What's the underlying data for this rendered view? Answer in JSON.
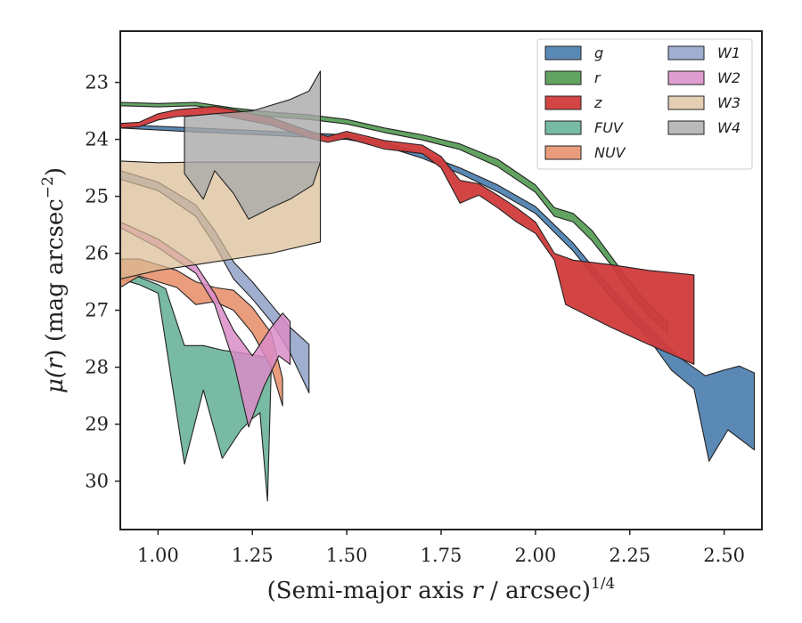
{
  "chart_data": {
    "type": "area",
    "xlabel_main": "(Semi-major axis ",
    "xlabel_var": "r",
    "xlabel_unit": " / arcsec)",
    "xlabel_exp": "1/4",
    "ylabel_main": "μ(",
    "ylabel_var": "r",
    "ylabel_unit": ") (mag arcsec",
    "ylabel_exp": "−2",
    "ylabel_close": ")",
    "xlim": [
      0.9,
      2.6
    ],
    "ylim": [
      30.85,
      22.1
    ],
    "y_inverted": true,
    "xticks": [
      1.0,
      1.25,
      1.5,
      1.75,
      2.0,
      2.25,
      2.5
    ],
    "xtick_labels": [
      "1.00",
      "1.25",
      "1.50",
      "1.75",
      "2.00",
      "2.25",
      "2.50"
    ],
    "yticks": [
      23,
      24,
      25,
      26,
      27,
      28,
      29,
      30
    ],
    "ytick_labels": [
      "23",
      "24",
      "25",
      "26",
      "27",
      "28",
      "29",
      "30"
    ],
    "grid": false,
    "legend_position": "top-right",
    "legend_columns": 2,
    "series": [
      {
        "name": "g",
        "color": "#4c7fb0",
        "opacity": 0.92,
        "upper": [
          [
            0.9,
            23.74
          ],
          [
            1.1,
            23.8
          ],
          [
            1.3,
            23.86
          ],
          [
            1.5,
            23.92
          ],
          [
            1.6,
            24.05
          ],
          [
            1.7,
            24.25
          ],
          [
            1.8,
            24.5
          ],
          [
            1.9,
            24.8
          ],
          [
            2.0,
            25.18
          ],
          [
            2.1,
            25.82
          ],
          [
            2.2,
            26.62
          ],
          [
            2.3,
            27.3
          ],
          [
            2.38,
            27.82
          ],
          [
            2.45,
            28.15
          ],
          [
            2.5,
            28.05
          ],
          [
            2.54,
            27.98
          ],
          [
            2.58,
            28.1
          ]
        ],
        "lower": [
          [
            0.9,
            23.8
          ],
          [
            1.1,
            23.87
          ],
          [
            1.3,
            23.93
          ],
          [
            1.5,
            24.0
          ],
          [
            1.6,
            24.12
          ],
          [
            1.7,
            24.33
          ],
          [
            1.8,
            24.6
          ],
          [
            1.9,
            24.92
          ],
          [
            2.0,
            25.3
          ],
          [
            2.1,
            25.96
          ],
          [
            2.2,
            26.78
          ],
          [
            2.3,
            27.5
          ],
          [
            2.36,
            28.05
          ],
          [
            2.42,
            28.38
          ],
          [
            2.46,
            29.65
          ],
          [
            2.51,
            29.1
          ],
          [
            2.58,
            29.45
          ]
        ]
      },
      {
        "name": "r",
        "color": "#5a9e5a",
        "opacity": 0.95,
        "upper": [
          [
            0.9,
            23.35
          ],
          [
            1.0,
            23.37
          ],
          [
            1.1,
            23.35
          ],
          [
            1.2,
            23.45
          ],
          [
            1.3,
            23.52
          ],
          [
            1.4,
            23.57
          ],
          [
            1.5,
            23.65
          ],
          [
            1.6,
            23.8
          ],
          [
            1.7,
            23.92
          ],
          [
            1.8,
            24.08
          ],
          [
            1.9,
            24.35
          ],
          [
            2.0,
            24.8
          ],
          [
            2.05,
            25.2
          ],
          [
            2.1,
            25.3
          ],
          [
            2.15,
            25.6
          ],
          [
            2.2,
            26.05
          ],
          [
            2.25,
            26.5
          ],
          [
            2.3,
            26.9
          ],
          [
            2.35,
            27.2
          ]
        ],
        "lower": [
          [
            0.9,
            23.41
          ],
          [
            1.0,
            23.43
          ],
          [
            1.1,
            23.41
          ],
          [
            1.2,
            23.52
          ],
          [
            1.3,
            23.6
          ],
          [
            1.4,
            23.65
          ],
          [
            1.5,
            23.73
          ],
          [
            1.6,
            23.88
          ],
          [
            1.7,
            24.01
          ],
          [
            1.8,
            24.18
          ],
          [
            1.9,
            24.48
          ],
          [
            2.0,
            24.93
          ],
          [
            2.05,
            25.35
          ],
          [
            2.1,
            25.45
          ],
          [
            2.15,
            25.78
          ],
          [
            2.2,
            26.2
          ],
          [
            2.25,
            26.7
          ],
          [
            2.3,
            27.1
          ],
          [
            2.35,
            27.4
          ]
        ]
      },
      {
        "name": "z",
        "color": "#d13b3b",
        "opacity": 0.95,
        "upper": [
          [
            0.9,
            23.72
          ],
          [
            0.95,
            23.7
          ],
          [
            1.0,
            23.55
          ],
          [
            1.05,
            23.48
          ],
          [
            1.1,
            23.45
          ],
          [
            1.15,
            23.42
          ],
          [
            1.2,
            23.48
          ],
          [
            1.3,
            23.62
          ],
          [
            1.4,
            23.85
          ],
          [
            1.45,
            23.95
          ],
          [
            1.5,
            23.86
          ],
          [
            1.6,
            24.02
          ],
          [
            1.7,
            24.1
          ],
          [
            1.75,
            24.3
          ],
          [
            1.8,
            24.72
          ],
          [
            1.85,
            24.78
          ],
          [
            1.9,
            24.98
          ],
          [
            1.95,
            25.2
          ],
          [
            2.0,
            25.45
          ],
          [
            2.05,
            26.0
          ],
          [
            2.1,
            26.12
          ],
          [
            2.2,
            26.2
          ],
          [
            2.3,
            26.3
          ],
          [
            2.42,
            26.38
          ]
        ],
        "lower": [
          [
            0.9,
            23.8
          ],
          [
            0.95,
            23.78
          ],
          [
            1.0,
            23.66
          ],
          [
            1.05,
            23.6
          ],
          [
            1.1,
            23.58
          ],
          [
            1.15,
            23.55
          ],
          [
            1.2,
            23.62
          ],
          [
            1.3,
            23.75
          ],
          [
            1.4,
            23.98
          ],
          [
            1.45,
            24.05
          ],
          [
            1.5,
            23.98
          ],
          [
            1.6,
            24.17
          ],
          [
            1.7,
            24.25
          ],
          [
            1.75,
            24.5
          ],
          [
            1.8,
            25.12
          ],
          [
            1.85,
            24.98
          ],
          [
            1.9,
            25.2
          ],
          [
            1.95,
            25.45
          ],
          [
            2.0,
            25.65
          ],
          [
            2.05,
            26.12
          ],
          [
            2.08,
            26.9
          ],
          [
            2.2,
            27.3
          ],
          [
            2.3,
            27.6
          ],
          [
            2.42,
            27.95
          ]
        ]
      },
      {
        "name": "FUV",
        "color": "#6ab39a",
        "opacity": 0.9,
        "upper": [
          [
            0.9,
            26.35
          ],
          [
            0.95,
            26.42
          ],
          [
            1.0,
            26.55
          ],
          [
            1.02,
            26.62
          ],
          [
            1.07,
            27.62
          ],
          [
            1.12,
            27.62
          ],
          [
            1.17,
            27.7
          ],
          [
            1.22,
            27.75
          ],
          [
            1.25,
            27.78
          ],
          [
            1.28,
            27.82
          ],
          [
            1.3,
            27.8
          ]
        ],
        "lower": [
          [
            0.9,
            26.45
          ],
          [
            0.95,
            26.55
          ],
          [
            1.0,
            26.7
          ],
          [
            1.07,
            29.7
          ],
          [
            1.12,
            28.4
          ],
          [
            1.17,
            29.6
          ],
          [
            1.22,
            29.1
          ],
          [
            1.25,
            28.9
          ],
          [
            1.27,
            28.8
          ],
          [
            1.29,
            30.35
          ],
          [
            1.3,
            28.0
          ]
        ]
      },
      {
        "name": "NUV",
        "color": "#e8926f",
        "opacity": 0.9,
        "upper": [
          [
            0.9,
            26.1
          ],
          [
            0.95,
            26.1
          ],
          [
            1.0,
            26.2
          ],
          [
            1.05,
            26.3
          ],
          [
            1.1,
            26.5
          ],
          [
            1.15,
            26.6
          ],
          [
            1.2,
            26.65
          ],
          [
            1.25,
            26.95
          ],
          [
            1.3,
            27.4
          ],
          [
            1.33,
            28.2
          ]
        ],
        "lower": [
          [
            0.9,
            26.6
          ],
          [
            0.95,
            26.4
          ],
          [
            1.0,
            26.5
          ],
          [
            1.05,
            26.6
          ],
          [
            1.1,
            26.9
          ],
          [
            1.15,
            26.85
          ],
          [
            1.2,
            27.0
          ],
          [
            1.25,
            27.4
          ],
          [
            1.3,
            28.0
          ],
          [
            1.33,
            28.68
          ]
        ]
      },
      {
        "name": "W1",
        "color": "#8fa1c8",
        "opacity": 0.85,
        "upper": [
          [
            0.9,
            24.55
          ],
          [
            1.0,
            24.75
          ],
          [
            1.1,
            25.15
          ],
          [
            1.15,
            25.6
          ],
          [
            1.2,
            26.15
          ],
          [
            1.25,
            26.5
          ],
          [
            1.3,
            26.9
          ],
          [
            1.35,
            27.3
          ],
          [
            1.4,
            27.6
          ]
        ],
        "lower": [
          [
            0.9,
            24.7
          ],
          [
            1.0,
            24.9
          ],
          [
            1.1,
            25.35
          ],
          [
            1.15,
            25.85
          ],
          [
            1.2,
            26.45
          ],
          [
            1.25,
            26.8
          ],
          [
            1.3,
            27.2
          ],
          [
            1.35,
            27.75
          ],
          [
            1.4,
            28.45
          ]
        ]
      },
      {
        "name": "W2",
        "color": "#d98cc8",
        "opacity": 0.85,
        "upper": [
          [
            0.9,
            25.45
          ],
          [
            1.0,
            25.75
          ],
          [
            1.1,
            26.2
          ],
          [
            1.15,
            26.7
          ],
          [
            1.2,
            27.35
          ],
          [
            1.25,
            27.8
          ],
          [
            1.3,
            27.3
          ],
          [
            1.33,
            27.05
          ],
          [
            1.35,
            27.2
          ]
        ],
        "lower": [
          [
            0.9,
            25.55
          ],
          [
            1.0,
            25.9
          ],
          [
            1.1,
            26.35
          ],
          [
            1.15,
            26.9
          ],
          [
            1.2,
            27.9
          ],
          [
            1.24,
            29.05
          ],
          [
            1.28,
            28.35
          ],
          [
            1.32,
            27.8
          ],
          [
            1.35,
            27.95
          ]
        ]
      },
      {
        "name": "W3",
        "color": "#d8bb93",
        "opacity": 0.7,
        "upper": [
          [
            0.9,
            24.38
          ],
          [
            1.0,
            24.41
          ],
          [
            1.1,
            24.4
          ],
          [
            1.2,
            24.4
          ],
          [
            1.3,
            24.4
          ],
          [
            1.43,
            24.4
          ]
        ],
        "lower": [
          [
            0.9,
            26.45
          ],
          [
            1.0,
            26.3
          ],
          [
            1.1,
            26.2
          ],
          [
            1.2,
            26.1
          ],
          [
            1.3,
            26.0
          ],
          [
            1.43,
            25.8
          ]
        ]
      },
      {
        "name": "W4",
        "color": "#a9a9a9",
        "opacity": 0.8,
        "upper": [
          [
            1.07,
            23.6
          ],
          [
            1.15,
            23.55
          ],
          [
            1.25,
            23.5
          ],
          [
            1.35,
            23.3
          ],
          [
            1.4,
            23.15
          ],
          [
            1.43,
            22.8
          ]
        ],
        "lower": [
          [
            1.07,
            24.6
          ],
          [
            1.12,
            25.05
          ],
          [
            1.15,
            24.55
          ],
          [
            1.2,
            24.95
          ],
          [
            1.24,
            25.4
          ],
          [
            1.3,
            25.2
          ],
          [
            1.35,
            25.05
          ],
          [
            1.41,
            24.8
          ],
          [
            1.43,
            24.4
          ]
        ]
      }
    ]
  }
}
